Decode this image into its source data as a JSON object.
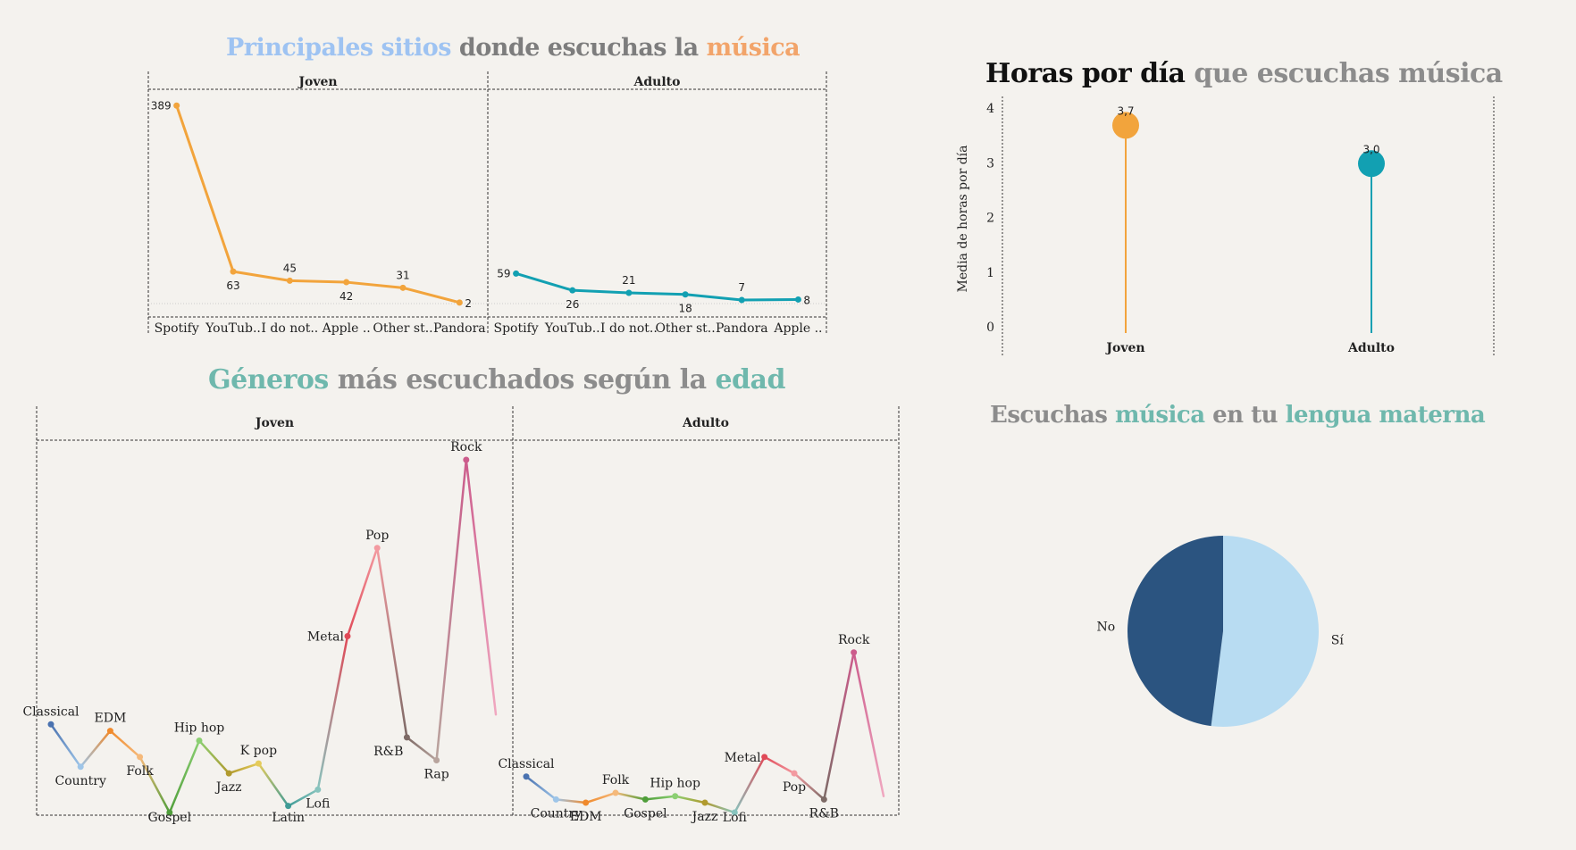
{
  "titles": {
    "sites": {
      "parts": [
        {
          "text": "Principales sitios",
          "color": "#9ec3f2"
        },
        {
          "text": " donde escuchas la ",
          "color": "#7d7d7d"
        },
        {
          "text": "música",
          "color": "#f2a46a"
        }
      ]
    },
    "hours": {
      "parts": [
        {
          "text": "Horas por día",
          "color": "#111111"
        },
        {
          "text": " que escuchas música",
          "color": "#8c8c8c"
        }
      ]
    },
    "genres": {
      "parts": [
        {
          "text": "Géneros",
          "color": "#6fb8ad"
        },
        {
          "text": " más escuchados según la ",
          "color": "#8c8c8c"
        },
        {
          "text": "edad",
          "color": "#6fb8ad"
        }
      ]
    },
    "lang": {
      "parts": [
        {
          "text": "Escuchas ",
          "color": "#8c8c8c"
        },
        {
          "text": "música",
          "color": "#6fb8ad"
        },
        {
          "text": " en tu ",
          "color": "#8c8c8c"
        },
        {
          "text": "lengua materna",
          "color": "#6fb8ad"
        }
      ]
    }
  },
  "chart_data": [
    {
      "id": "sites",
      "type": "line",
      "panels": [
        {
          "name": "Joven",
          "color": "#f2a43c",
          "categories": [
            "Spotify",
            "YouTub..",
            "I do not..",
            "Apple ..",
            "Other st..",
            "Pandora"
          ],
          "values": [
            389,
            63,
            45,
            42,
            31,
            2
          ]
        },
        {
          "name": "Adulto",
          "color": "#12a0b2",
          "categories": [
            "Spotify",
            "YouTub..",
            "I do not..",
            "Other st..",
            "Pandora",
            "Apple .."
          ],
          "values": [
            59,
            26,
            21,
            18,
            7,
            8
          ]
        }
      ],
      "ylim": [
        0,
        400
      ]
    },
    {
      "id": "hours",
      "type": "lollipop",
      "ylabel": "Media de horas por día",
      "categories": [
        "Joven",
        "Adulto"
      ],
      "values": [
        3.7,
        3.0
      ],
      "value_labels": [
        "3,7",
        "3,0"
      ],
      "colors": [
        "#f2a43c",
        "#12a0b2"
      ],
      "yticks": [
        "0",
        "1",
        "2",
        "3",
        "4"
      ],
      "ylim": [
        0,
        4.3
      ]
    },
    {
      "id": "genres",
      "type": "line",
      "panels": [
        {
          "name": "Joven",
          "categories": [
            "Classical",
            "Country",
            "EDM",
            "Folk",
            "Gospel",
            "Hip hop",
            "Jazz",
            "K pop",
            "Latin",
            "Lofi",
            "Metal",
            "Pop",
            "R&B",
            "Rap",
            "Rock",
            ""
          ],
          "values": [
            27,
            14,
            25,
            17,
            0,
            22,
            12,
            15,
            2,
            7,
            54,
            81,
            23,
            16,
            108,
            30
          ],
          "colors": [
            "#4a72b0",
            "#9ec5e8",
            "#f08a2c",
            "#f5b97a",
            "#4f9e3a",
            "#8bcf72",
            "#b19a2e",
            "#e5cb5a",
            "#3f9b96",
            "#88c4be",
            "#e04a58",
            "#f39aa0",
            "#7d6a66",
            "#b8a49d",
            "#cc5c8c",
            "#f0a8c0"
          ]
        },
        {
          "name": "Adulto",
          "categories": [
            "Classical",
            "Country",
            "EDM",
            "Folk",
            "Gospel",
            "Hip hop",
            "Jazz",
            "Lofi",
            "Metal",
            "Pop",
            "R&B",
            "Rock",
            ""
          ],
          "values": [
            11,
            4,
            3,
            6,
            4,
            5,
            3,
            0,
            17,
            12,
            4,
            49,
            5
          ],
          "colors": [
            "#4a72b0",
            "#9ec5e8",
            "#f08a2c",
            "#f5b97a",
            "#4f9e3a",
            "#8bcf72",
            "#b19a2e",
            "#88c4be",
            "#e04a58",
            "#f39aa0",
            "#7d6a66",
            "#cc5c8c",
            "#f0a8c0"
          ]
        }
      ],
      "ylim": [
        0,
        115
      ]
    },
    {
      "id": "lang",
      "type": "pie",
      "categories": [
        "Sí",
        "No"
      ],
      "values": [
        52,
        48
      ],
      "colors": [
        "#b8dcf2",
        "#2b5480"
      ]
    }
  ]
}
